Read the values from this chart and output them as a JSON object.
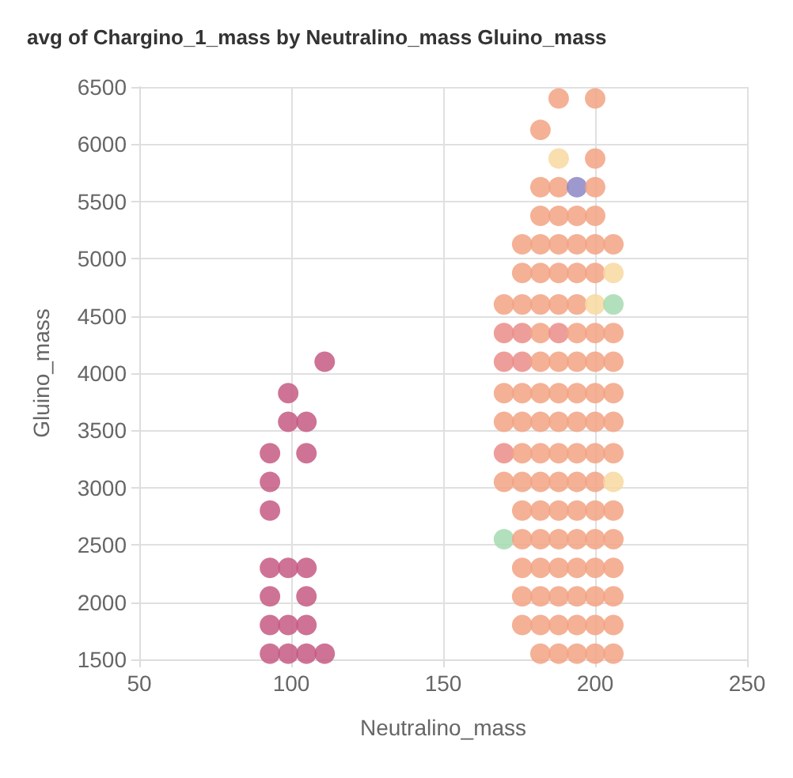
{
  "chart_data": {
    "type": "scatter",
    "title": "avg of Chargino_1_mass by Neutralino_mass Gluino_mass",
    "xlabel": "Neutralino_mass",
    "ylabel": "Gluino_mass",
    "xlim": [
      50,
      250
    ],
    "xticks": [
      50,
      100,
      150,
      200,
      250
    ],
    "ylim": [
      1500,
      6500
    ],
    "yticks": [
      1500,
      2000,
      2500,
      3000,
      3500,
      4000,
      4500,
      5000,
      5500,
      6000,
      6500
    ],
    "grid": true,
    "marker": "circle",
    "series": [
      {
        "x": [
          93,
          99,
          105,
          111,
          93,
          99,
          105,
          93,
          105,
          93,
          99,
          105,
          93,
          93,
          93,
          105,
          99,
          105,
          99,
          111,
          182,
          188,
          194,
          200,
          206,
          176,
          182,
          188,
          194,
          200,
          206,
          176,
          182,
          188,
          194,
          200,
          206,
          176,
          182,
          188,
          194,
          200,
          206,
          170,
          176,
          182,
          188,
          194,
          200,
          206,
          176,
          182,
          188,
          194,
          200,
          206,
          170,
          176,
          182,
          188,
          194,
          200,
          206,
          170,
          176,
          182,
          188,
          194,
          200,
          206,
          170,
          176,
          182,
          188,
          194,
          200,
          206,
          170,
          176,
          182,
          188,
          194,
          200,
          206,
          170,
          176,
          182,
          188,
          194,
          200,
          206,
          170,
          176,
          182,
          188,
          194,
          200,
          206,
          170,
          176,
          182,
          188,
          194,
          200,
          206,
          176,
          182,
          188,
          194,
          200,
          206,
          176,
          182,
          188,
          194,
          200,
          206,
          182,
          188,
          194,
          200,
          182,
          188,
          194,
          200,
          188,
          200,
          182,
          188,
          200
        ],
        "values": [
          1550,
          1550,
          1550,
          1550,
          1800,
          1800,
          1800,
          2050,
          2050,
          2300,
          2300,
          2300,
          2800,
          3050,
          3300,
          3300,
          3575,
          3575,
          3825,
          4100,
          1550,
          1550,
          1550,
          1550,
          1550,
          1800,
          1800,
          1800,
          1800,
          1800,
          1800,
          2050,
          2050,
          2050,
          2050,
          2050,
          2050,
          2300,
          2300,
          2300,
          2300,
          2300,
          2300,
          2550,
          2550,
          2550,
          2550,
          2550,
          2550,
          2550,
          2800,
          2800,
          2800,
          2800,
          2800,
          2800,
          3050,
          3050,
          3050,
          3050,
          3050,
          3050,
          3050,
          3300,
          3300,
          3300,
          3300,
          3300,
          3300,
          3300,
          3575,
          3575,
          3575,
          3575,
          3575,
          3575,
          3575,
          3825,
          3825,
          3825,
          3825,
          3825,
          3825,
          3825,
          4100,
          4100,
          4100,
          4100,
          4100,
          4100,
          4100,
          4350,
          4350,
          4350,
          4350,
          4350,
          4350,
          4350,
          4600,
          4600,
          4600,
          4600,
          4600,
          4600,
          4600,
          4875,
          4875,
          4875,
          4875,
          4875,
          4875,
          5125,
          5125,
          5125,
          5125,
          5125,
          5125,
          5375,
          5375,
          5375,
          5375,
          5625,
          5625,
          5625,
          5625,
          5875,
          5875,
          6125,
          6400,
          6400
        ],
        "colors": [
          "#c65a83",
          "#c65a83",
          "#c65a83",
          "#c65a83",
          "#c65a83",
          "#c65a83",
          "#c65a83",
          "#c65a83",
          "#c65a83",
          "#c65a83",
          "#c65a83",
          "#c65a83",
          "#c65a83",
          "#c65a83",
          "#c65a83",
          "#c65a83",
          "#c65a83",
          "#c65a83",
          "#c65a83",
          "#c65a83",
          "#f2a384",
          "#f2a384",
          "#f2a384",
          "#f2a384",
          "#f2a384",
          "#f2a384",
          "#f2a384",
          "#f2a384",
          "#f2a384",
          "#f2a384",
          "#f2a384",
          "#f2a384",
          "#f2a384",
          "#f2a384",
          "#f2a384",
          "#f2a384",
          "#f2a384",
          "#f2a384",
          "#f2a384",
          "#f2a384",
          "#f2a384",
          "#f2a384",
          "#f2a384",
          "#a6dbb0",
          "#f2a384",
          "#f2a384",
          "#f2a384",
          "#f2a384",
          "#f2a384",
          "#f2a384",
          "#f2a384",
          "#f2a384",
          "#f2a384",
          "#f2a384",
          "#f2a384",
          "#f2a384",
          "#f2a384",
          "#f2a384",
          "#f2a384",
          "#f2a384",
          "#f2a384",
          "#f2a384",
          "#f8d8a0",
          "#eb8d88",
          "#f2a384",
          "#f2a384",
          "#f2a384",
          "#f2a384",
          "#f2a384",
          "#f2a384",
          "#f2a384",
          "#f2a384",
          "#f2a384",
          "#f2a384",
          "#f2a384",
          "#f2a384",
          "#f2a384",
          "#f2a384",
          "#f2a384",
          "#f2a384",
          "#f2a384",
          "#f2a384",
          "#f2a384",
          "#f2a384",
          "#eb8d88",
          "#eb8d88",
          "#f2a384",
          "#f2a384",
          "#f2a384",
          "#f2a384",
          "#f2a384",
          "#eb8d88",
          "#eb8d88",
          "#f2a384",
          "#eb8d88",
          "#f2a384",
          "#f2a384",
          "#f2a384",
          "#f2a384",
          "#f2a384",
          "#f2a384",
          "#f2a384",
          "#f2a384",
          "#f8d8a0",
          "#a6dbb0",
          "#f2a384",
          "#f2a384",
          "#f2a384",
          "#f2a384",
          "#f2a384",
          "#f8d8a0",
          "#f2a384",
          "#f2a384",
          "#f2a384",
          "#f2a384",
          "#f2a384",
          "#f2a384",
          "#f2a384",
          "#f2a384",
          "#f2a384",
          "#f2a384",
          "#f2a384",
          "#f2a384",
          "#8c86c6",
          "#f2a384",
          "#f8d8a0",
          "#f2a384",
          "#f2a384",
          "#f2a384",
          "#f2a384"
        ]
      }
    ]
  }
}
